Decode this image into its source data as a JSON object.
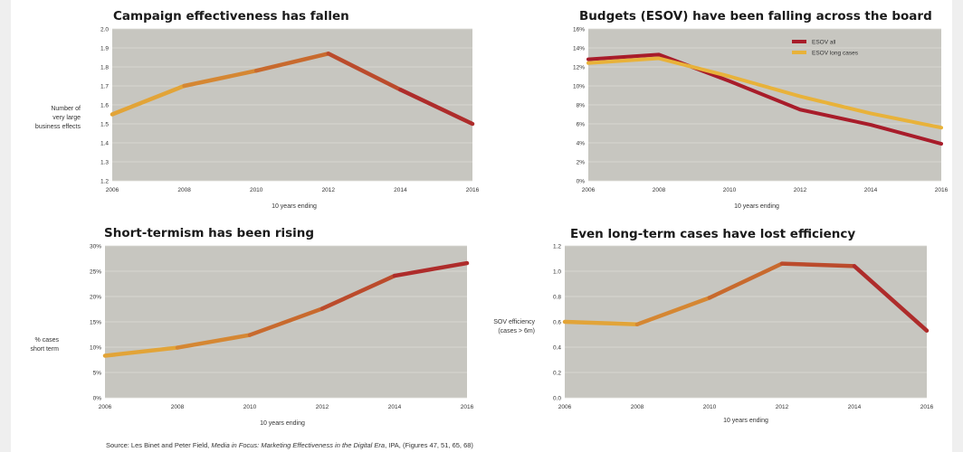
{
  "source": {
    "prefix": "Source: Les Binet and Peter Field, ",
    "title": "Media in Focus: Marketing Effectiveness in the Digital Era",
    "suffix": ", IPA, (Figures 47, 51, 65, 68)"
  },
  "colors": {
    "plot_bg": "#c7c6c0",
    "grid": "#dcdbd6",
    "gold": "#e8b23a",
    "mid": "#c86a2e",
    "red": "#a81c2a"
  },
  "chart_data": [
    {
      "type": "line",
      "title": "Campaign effectiveness has fallen",
      "ylabel": "Number of\nvery large\nbusiness effects",
      "xlabel": "10 years ending",
      "x": [
        2006,
        2008,
        2010,
        2012,
        2014,
        2016
      ],
      "xticks": [
        "2006",
        "2008",
        "2010",
        "2012",
        "2014",
        "2016"
      ],
      "ylim": [
        1.2,
        2.0
      ],
      "yticks": [
        "1.2",
        "1.3",
        "1.4",
        "1.5",
        "1.6",
        "1.7",
        "1.8",
        "1.9",
        "2.0"
      ],
      "series": [
        {
          "values": [
            1.55,
            1.7,
            1.78,
            1.87,
            1.68,
            1.5
          ],
          "style": "gradient"
        }
      ],
      "grid": true
    },
    {
      "type": "line",
      "title": "Budgets (ESOV) have been falling across the board",
      "ylabel": "",
      "xlabel": "10 years ending",
      "x": [
        2006,
        2008,
        2010,
        2012,
        2014,
        2016
      ],
      "xticks": [
        "2006",
        "2008",
        "2010",
        "2012",
        "2014",
        "2016"
      ],
      "ylim": [
        0,
        16
      ],
      "yticks": [
        "0%",
        "2%",
        "4%",
        "6%",
        "8%",
        "10%",
        "12%",
        "14%",
        "16%"
      ],
      "series": [
        {
          "name": "ESOV all",
          "values": [
            12.8,
            13.3,
            10.5,
            7.5,
            5.9,
            3.9
          ],
          "color": "#a81c2a"
        },
        {
          "name": "ESOV long cases",
          "values": [
            12.4,
            12.9,
            11.0,
            8.9,
            7.1,
            5.6
          ],
          "color": "#e8b23a"
        }
      ],
      "legend": "top-right",
      "grid": true
    },
    {
      "type": "line",
      "title": "Short-termism has been rising",
      "ylabel": "% cases\nshort term",
      "xlabel": "10 years ending",
      "x": [
        2006,
        2008,
        2010,
        2012,
        2014,
        2016
      ],
      "xticks": [
        "2006",
        "2008",
        "2010",
        "2012",
        "2014",
        "2016"
      ],
      "ylim": [
        0,
        30
      ],
      "yticks": [
        "0%",
        "5%",
        "10%",
        "15%",
        "20%",
        "25%",
        "30%"
      ],
      "series": [
        {
          "values": [
            8.3,
            9.9,
            12.4,
            17.6,
            24.1,
            26.6
          ],
          "style": "gradient"
        }
      ],
      "grid": true
    },
    {
      "type": "line",
      "title": "Even long-term cases have lost efficiency",
      "ylabel": "SOV efficiency\n(cases > 6m)",
      "xlabel": "10 years ending",
      "x": [
        2006,
        2008,
        2010,
        2012,
        2014,
        2016
      ],
      "xticks": [
        "2006",
        "2008",
        "2010",
        "2012",
        "2014",
        "2016"
      ],
      "ylim": [
        0,
        1.2
      ],
      "yticks": [
        "0.0",
        "0.2",
        "0.4",
        "0.6",
        "0.8",
        "1.0",
        "1.2"
      ],
      "series": [
        {
          "values": [
            0.6,
            0.58,
            0.79,
            1.06,
            1.04,
            0.53
          ],
          "style": "gradient"
        }
      ],
      "grid": true
    }
  ]
}
